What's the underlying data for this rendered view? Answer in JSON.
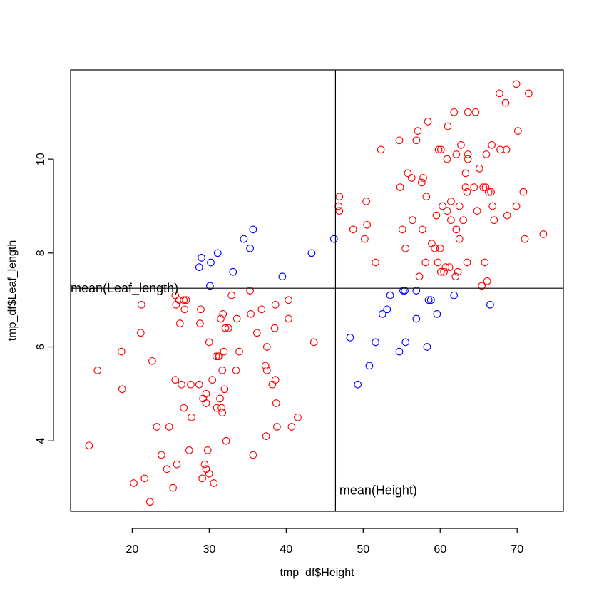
{
  "chart_data": {
    "type": "scatter",
    "xlabel": "tmp_df$Height",
    "ylabel": "tmp_df$Leaf_length",
    "xlim": [
      12,
      76
    ],
    "ylim": [
      2.5,
      11.9
    ],
    "x_ticks": [
      20,
      30,
      40,
      50,
      60,
      70
    ],
    "y_ticks": [
      4,
      6,
      8,
      10
    ],
    "reference_lines": {
      "vertical_x": 46.4,
      "horizontal_y": 7.25
    },
    "annotations": [
      {
        "text": "mean(Leaf_length)",
        "x": 12,
        "y": 7.25
      },
      {
        "text": "mean(Height)",
        "x": 46.4,
        "y": 2.95
      }
    ],
    "colors": {
      "red_group": "#ff0000",
      "blue_group": "#0000ff"
    },
    "series": [
      {
        "color": "#ff0000",
        "points": [
          [
            14.4,
            3.9
          ],
          [
            15.5,
            5.5
          ],
          [
            18.6,
            5.9
          ],
          [
            18.7,
            5.1
          ],
          [
            20.2,
            3.1
          ],
          [
            21.2,
            6.9
          ],
          [
            21.1,
            6.3
          ],
          [
            21.6,
            3.2
          ],
          [
            22.3,
            2.7
          ],
          [
            22.6,
            5.7
          ],
          [
            23.2,
            4.3
          ],
          [
            23.8,
            3.7
          ],
          [
            24.5,
            3.4
          ],
          [
            24.8,
            4.3
          ],
          [
            25.3,
            3.0
          ],
          [
            25.6,
            5.3
          ],
          [
            25.6,
            7.1
          ],
          [
            25.7,
            6.9
          ],
          [
            25.8,
            3.5
          ],
          [
            26.1,
            7.0
          ],
          [
            26.2,
            6.5
          ],
          [
            26.4,
            5.2
          ],
          [
            26.7,
            7.0
          ],
          [
            26.7,
            4.7
          ],
          [
            26.8,
            6.8
          ],
          [
            27.0,
            7.0
          ],
          [
            27.4,
            3.8
          ],
          [
            27.7,
            4.5
          ],
          [
            27.6,
            5.2
          ],
          [
            28.9,
            6.8
          ],
          [
            28.7,
            5.2
          ],
          [
            28.8,
            6.5
          ],
          [
            29.1,
            3.2
          ],
          [
            29.2,
            4.9
          ],
          [
            29.4,
            3.5
          ],
          [
            29.6,
            5.0
          ],
          [
            29.6,
            4.8
          ],
          [
            29.6,
            3.4
          ],
          [
            29.8,
            3.8
          ],
          [
            30.0,
            3.3
          ],
          [
            30.0,
            6.1
          ],
          [
            30.4,
            5.3
          ],
          [
            30.6,
            3.1
          ],
          [
            30.9,
            5.8
          ],
          [
            31.0,
            4.7
          ],
          [
            31.2,
            5.8
          ],
          [
            31.3,
            5.8
          ],
          [
            31.4,
            4.9
          ],
          [
            31.5,
            6.6
          ],
          [
            31.6,
            4.7
          ],
          [
            31.7,
            4.6
          ],
          [
            31.7,
            5.5
          ],
          [
            31.8,
            6.7
          ],
          [
            31.9,
            5.9
          ],
          [
            32.0,
            5.1
          ],
          [
            32.1,
            6.4
          ],
          [
            32.2,
            4.0
          ],
          [
            32.5,
            6.4
          ],
          [
            32.9,
            7.1
          ],
          [
            33.5,
            5.5
          ],
          [
            33.6,
            6.6
          ],
          [
            33.9,
            5.9
          ],
          [
            35.3,
            7.2
          ],
          [
            35.4,
            6.7
          ],
          [
            35.7,
            3.7
          ],
          [
            36.2,
            6.3
          ],
          [
            36.8,
            6.8
          ],
          [
            37.3,
            5.6
          ],
          [
            37.4,
            4.1
          ],
          [
            37.5,
            5.5
          ],
          [
            37.5,
            6.0
          ],
          [
            38.2,
            5.2
          ],
          [
            38.5,
            6.4
          ],
          [
            38.6,
            5.3
          ],
          [
            38.6,
            6.9
          ],
          [
            38.7,
            4.8
          ],
          [
            38.8,
            4.3
          ],
          [
            40.3,
            6.6
          ],
          [
            40.3,
            7.0
          ],
          [
            40.7,
            4.3
          ],
          [
            41.5,
            4.5
          ],
          [
            43.6,
            6.1
          ],
          [
            46.8,
            9.0
          ],
          [
            46.9,
            8.9
          ],
          [
            46.9,
            9.2
          ],
          [
            48.7,
            8.5
          ],
          [
            50.2,
            8.3
          ],
          [
            50.4,
            9.1
          ],
          [
            50.5,
            8.6
          ],
          [
            51.6,
            7.8
          ],
          [
            52.3,
            10.2
          ],
          [
            54.7,
            10.4
          ],
          [
            54.8,
            9.4
          ],
          [
            55.1,
            8.5
          ],
          [
            55.5,
            8.1
          ],
          [
            55.8,
            9.7
          ],
          [
            56.3,
            9.6
          ],
          [
            56.4,
            8.7
          ],
          [
            56.9,
            10.4
          ],
          [
            57.1,
            10.6
          ],
          [
            57.3,
            7.5
          ],
          [
            57.6,
            9.5
          ],
          [
            57.7,
            8.5
          ],
          [
            57.8,
            9.6
          ],
          [
            58.1,
            7.8
          ],
          [
            58.4,
            10.8
          ],
          [
            58.2,
            9.2
          ],
          [
            58.9,
            8.2
          ],
          [
            59.3,
            8.1
          ],
          [
            59.5,
            8.8
          ],
          [
            59.7,
            7.8
          ],
          [
            59.8,
            10.2
          ],
          [
            60.0,
            8.1
          ],
          [
            60.1,
            10.2
          ],
          [
            60.1,
            7.6
          ],
          [
            60.3,
            9.0
          ],
          [
            60.5,
            7.6
          ],
          [
            60.7,
            7.7
          ],
          [
            60.9,
            8.9
          ],
          [
            60.9,
            10.0
          ],
          [
            61.0,
            10.7
          ],
          [
            61.2,
            7.7
          ],
          [
            61.4,
            8.7
          ],
          [
            61.4,
            9.1
          ],
          [
            61.8,
            11.0
          ],
          [
            62.0,
            7.5
          ],
          [
            62.1,
            8.5
          ],
          [
            62.1,
            10.1
          ],
          [
            62.3,
            7.6
          ],
          [
            62.5,
            9.0
          ],
          [
            62.5,
            8.3
          ],
          [
            62.7,
            10.3
          ],
          [
            63.0,
            8.7
          ],
          [
            63.3,
            9.4
          ],
          [
            63.3,
            9.7
          ],
          [
            63.5,
            9.3
          ],
          [
            63.5,
            7.8
          ],
          [
            63.6,
            10.1
          ],
          [
            63.6,
            10.0
          ],
          [
            63.6,
            11.0
          ],
          [
            64.4,
            9.4
          ],
          [
            64.6,
            11.0
          ],
          [
            64.8,
            8.9
          ],
          [
            65.1,
            9.8
          ],
          [
            65.4,
            7.3
          ],
          [
            65.6,
            9.4
          ],
          [
            65.8,
            7.8
          ],
          [
            65.9,
            9.4
          ],
          [
            66.0,
            10.1
          ],
          [
            66.1,
            7.4
          ],
          [
            66.3,
            9.3
          ],
          [
            66.6,
            9.3
          ],
          [
            66.7,
            10.3
          ],
          [
            66.8,
            9.0
          ],
          [
            67.0,
            8.7
          ],
          [
            67.7,
            11.4
          ],
          [
            67.8,
            10.2
          ],
          [
            68.5,
            11.2
          ],
          [
            68.6,
            10.2
          ],
          [
            68.7,
            8.8
          ],
          [
            69.9,
            9.0
          ],
          [
            69.9,
            11.6
          ],
          [
            70.1,
            10.6
          ],
          [
            70.8,
            9.3
          ],
          [
            71.0,
            8.3
          ],
          [
            71.5,
            11.4
          ],
          [
            73.4,
            8.4
          ]
        ]
      },
      {
        "color": "#0000ff",
        "points": [
          [
            28.7,
            7.7
          ],
          [
            29.0,
            7.9
          ],
          [
            30.1,
            7.3
          ],
          [
            30.2,
            7.8
          ],
          [
            31.1,
            8.0
          ],
          [
            33.1,
            7.6
          ],
          [
            34.5,
            8.3
          ],
          [
            35.3,
            8.1
          ],
          [
            35.7,
            8.5
          ],
          [
            39.5,
            7.5
          ],
          [
            43.3,
            8.0
          ],
          [
            46.2,
            8.3
          ],
          [
            48.3,
            6.2
          ],
          [
            49.3,
            5.2
          ],
          [
            50.8,
            5.6
          ],
          [
            51.6,
            6.1
          ],
          [
            52.5,
            6.7
          ],
          [
            53.1,
            6.8
          ],
          [
            53.5,
            7.1
          ],
          [
            54.7,
            5.9
          ],
          [
            55.2,
            7.2
          ],
          [
            55.4,
            7.2
          ],
          [
            55.5,
            6.1
          ],
          [
            56.9,
            6.6
          ],
          [
            56.9,
            7.2
          ],
          [
            58.3,
            6.0
          ],
          [
            58.5,
            7.0
          ],
          [
            58.8,
            7.0
          ],
          [
            59.6,
            6.7
          ],
          [
            61.8,
            7.1
          ],
          [
            66.5,
            6.9
          ]
        ]
      }
    ]
  }
}
